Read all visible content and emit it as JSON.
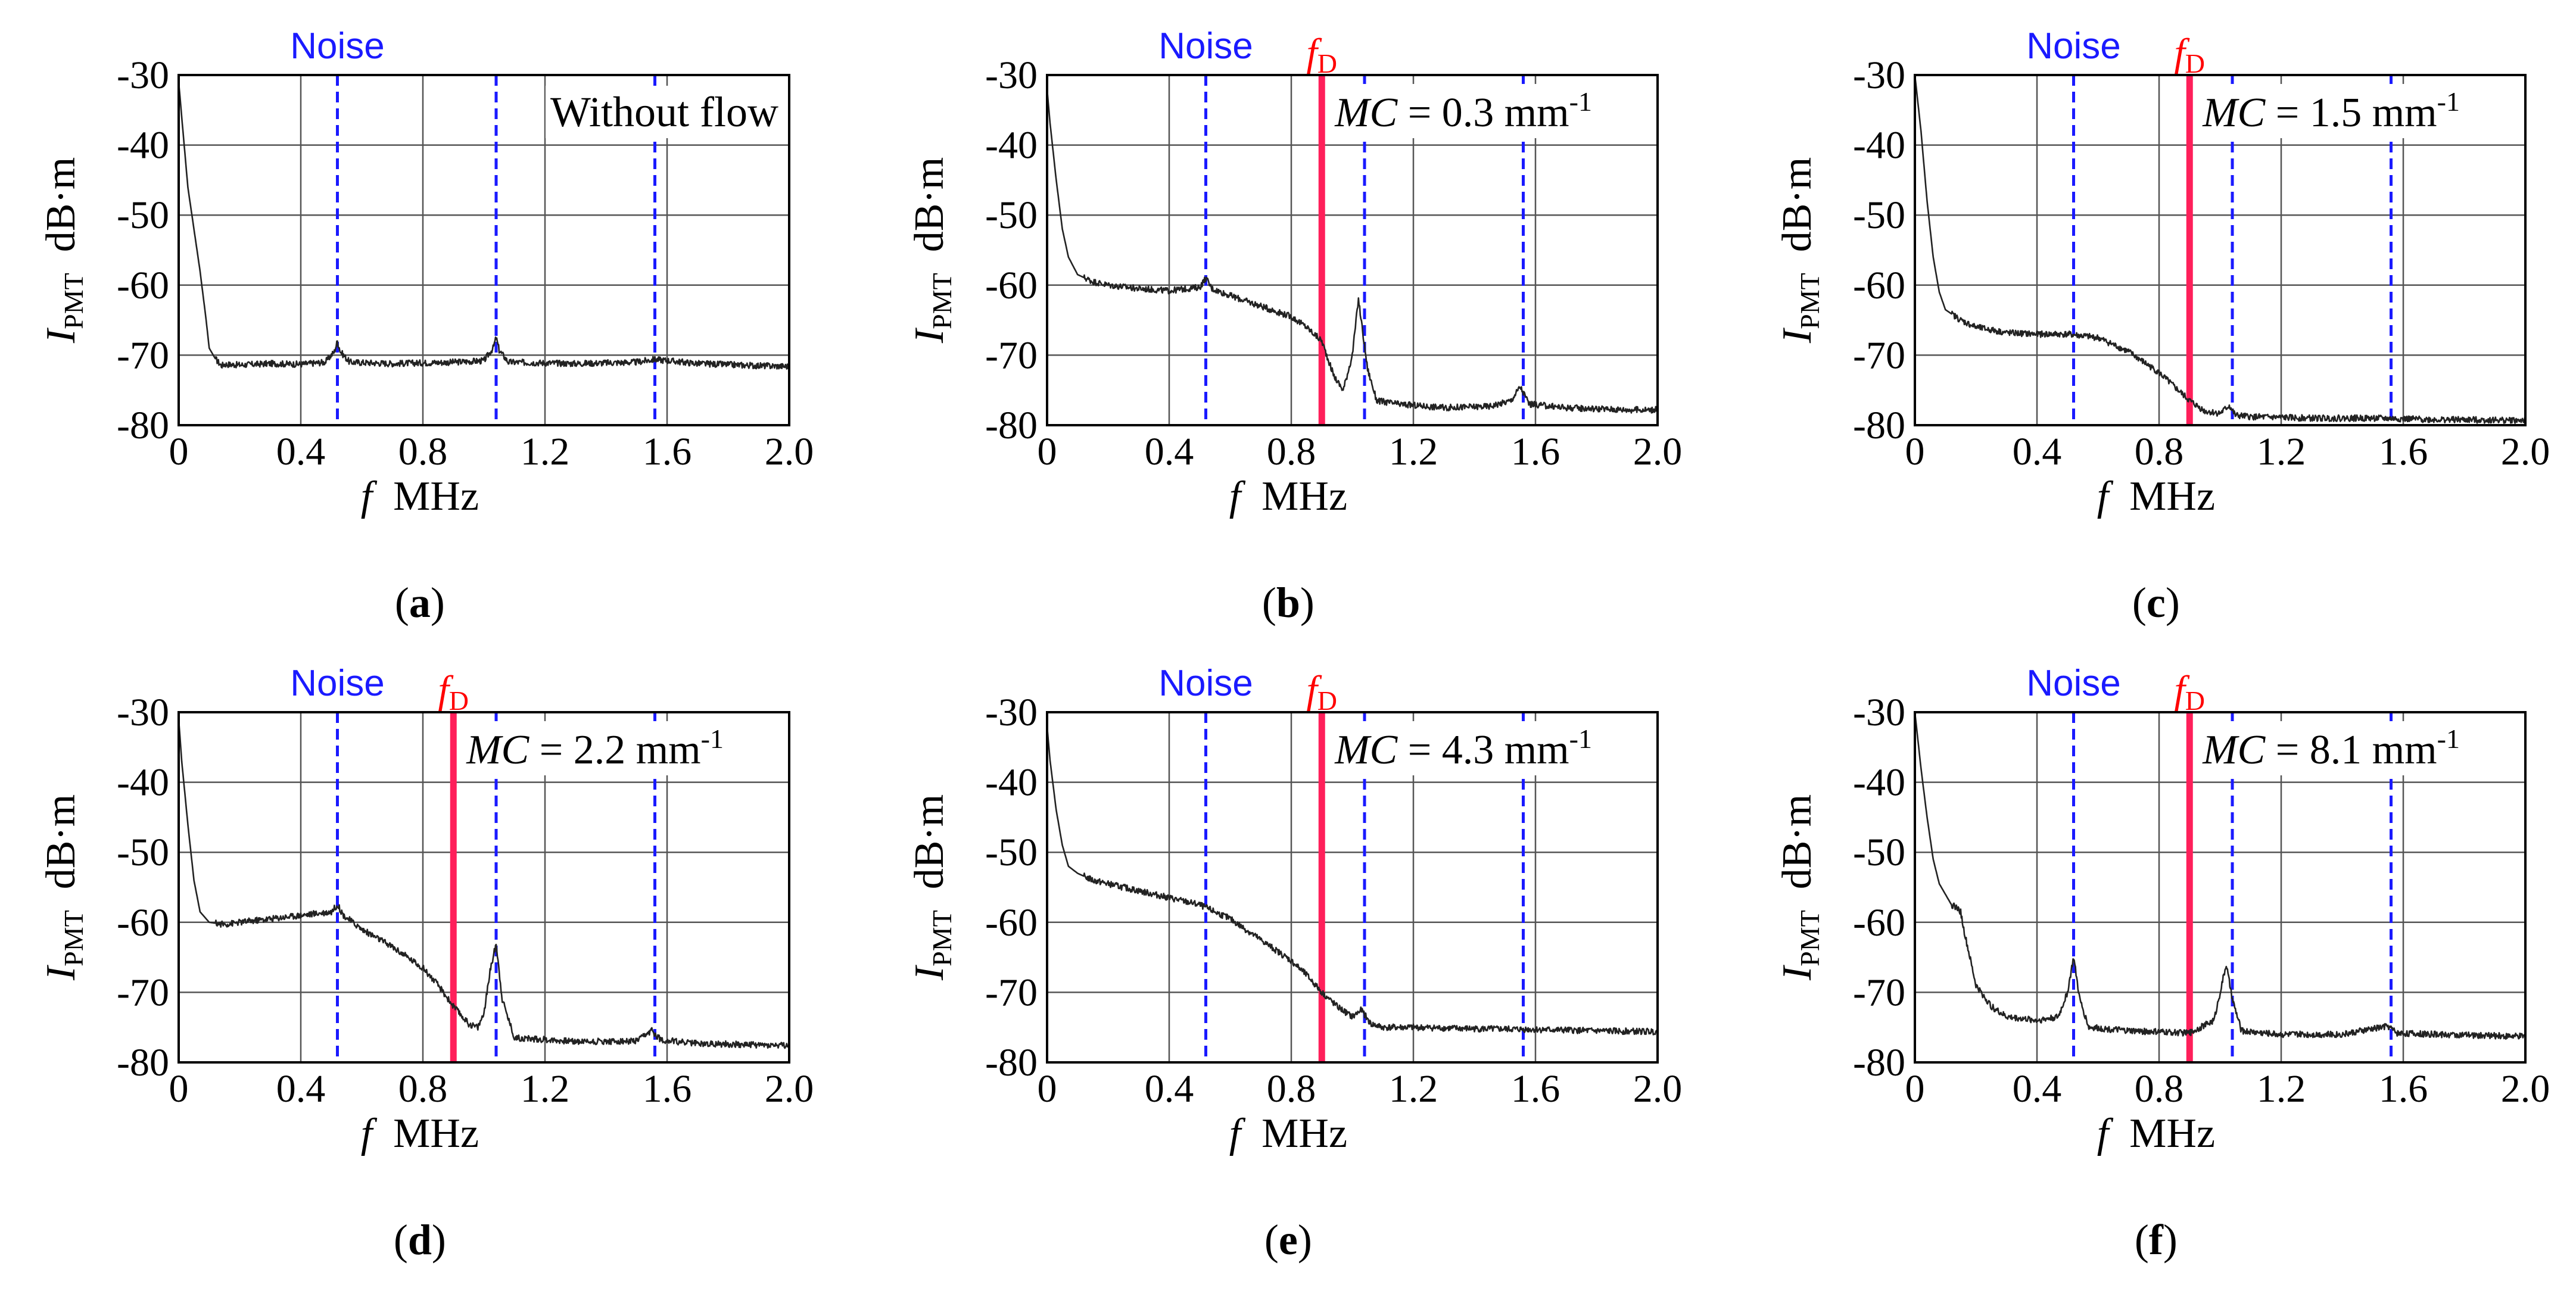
{
  "figure": {
    "colors": {
      "noise_line": "#1a1aff",
      "doppler_line": "#ff1f5a",
      "doppler_label": "#ff0000",
      "noise_label": "#1a1aff",
      "spectrum": "#222222",
      "grid": "#555555",
      "frame": "#000000"
    },
    "common": {
      "noise_label": "Noise",
      "fd_label_main": "f",
      "fd_label_sub": "D",
      "xlabel_var": "f",
      "xlabel_unit": "MHz",
      "ylabel_var": "I",
      "ylabel_sub": "PMT",
      "ylabel_unit": "dB·m",
      "mc_var": "MC",
      "mc_unit": "mm",
      "mc_exp": "-1",
      "x_ticks": [
        "0",
        "0.4",
        "0.8",
        "1.2",
        "1.6",
        "2.0"
      ],
      "y_ticks": [
        "-30",
        "-40",
        "-50",
        "-60",
        "-70",
        "-80"
      ]
    }
  },
  "chart_data": [
    {
      "type": "line",
      "panel_label": "a",
      "annotation": "Without flow",
      "mc_value": null,
      "xlim": [
        0,
        2.0
      ],
      "ylim": [
        -80,
        -30
      ],
      "x_ticks": [
        0,
        0.4,
        0.8,
        1.2,
        1.6,
        2.0
      ],
      "y_ticks": [
        -30,
        -40,
        -50,
        -60,
        -70,
        -80
      ],
      "noise_lines_mhz": [
        0.52,
        1.04,
        1.56
      ],
      "doppler_mhz": null,
      "series": [
        {
          "name": "I_PMT",
          "x": [
            0,
            0.01,
            0.03,
            0.05,
            0.07,
            0.09,
            0.1,
            0.12,
            0.14,
            0.15,
            0.2,
            0.3,
            0.4,
            0.48,
            0.51,
            0.52,
            0.53,
            0.56,
            0.7,
            0.9,
            1.0,
            1.03,
            1.04,
            1.05,
            1.08,
            1.3,
            1.5,
            1.56,
            1.7,
            1.9,
            2.0
          ],
          "y": [
            -31,
            -36,
            -46,
            -52,
            -58,
            -65,
            -69,
            -70.5,
            -71.5,
            -71.3,
            -71.4,
            -71.2,
            -71.3,
            -71,
            -69.5,
            -68,
            -69.5,
            -71,
            -71.2,
            -71,
            -70.8,
            -69,
            -67.5,
            -69.3,
            -71,
            -71.2,
            -71,
            -70.6,
            -71.2,
            -71.5,
            -71.6
          ]
        }
      ]
    },
    {
      "type": "line",
      "panel_label": "b",
      "annotation": null,
      "mc_value": "0.3",
      "xlim": [
        0,
        2.0
      ],
      "ylim": [
        -80,
        -30
      ],
      "x_ticks": [
        0,
        0.4,
        0.8,
        1.2,
        1.6,
        2.0
      ],
      "y_ticks": [
        -30,
        -40,
        -50,
        -60,
        -70,
        -80
      ],
      "noise_lines_mhz": [
        0.52,
        1.04,
        1.56
      ],
      "doppler_mhz": 0.9,
      "series": [
        {
          "name": "I_PMT",
          "x": [
            0,
            0.01,
            0.03,
            0.05,
            0.07,
            0.1,
            0.15,
            0.2,
            0.3,
            0.4,
            0.5,
            0.52,
            0.54,
            0.6,
            0.7,
            0.8,
            0.85,
            0.9,
            0.94,
            0.97,
            1.0,
            1.02,
            1.05,
            1.08,
            1.15,
            1.3,
            1.45,
            1.52,
            1.55,
            1.58,
            1.7,
            1.9,
            2.0
          ],
          "y": [
            -32,
            -37,
            -45,
            -52,
            -56,
            -58.5,
            -59.5,
            -60,
            -60.5,
            -60.8,
            -60.3,
            -59,
            -60.5,
            -61.5,
            -63,
            -64.5,
            -66,
            -68,
            -73,
            -75,
            -70,
            -62,
            -72,
            -76.5,
            -77,
            -77.5,
            -77.3,
            -76.5,
            -74.5,
            -77,
            -77.5,
            -77.8,
            -77.8
          ]
        }
      ]
    },
    {
      "type": "line",
      "panel_label": "c",
      "annotation": null,
      "mc_value": "1.5",
      "xlim": [
        0,
        2.0
      ],
      "ylim": [
        -80,
        -30
      ],
      "x_ticks": [
        0,
        0.4,
        0.8,
        1.2,
        1.6,
        2.0
      ],
      "y_ticks": [
        -30,
        -40,
        -50,
        -60,
        -70,
        -80
      ],
      "noise_lines_mhz": [
        0.52,
        1.04,
        1.56
      ],
      "doppler_mhz": 0.9,
      "series": [
        {
          "name": "I_PMT",
          "x": [
            0,
            0.02,
            0.04,
            0.06,
            0.08,
            0.1,
            0.15,
            0.2,
            0.3,
            0.4,
            0.5,
            0.6,
            0.7,
            0.8,
            0.85,
            0.9,
            0.95,
            1.0,
            1.03,
            1.05,
            1.1,
            1.3,
            1.5,
            1.7,
            2.0
          ],
          "y": [
            -30,
            -38,
            -48,
            -56,
            -61,
            -63.5,
            -65,
            -66,
            -66.8,
            -67,
            -67,
            -67.5,
            -69.5,
            -72.5,
            -74.5,
            -76.5,
            -78,
            -78.3,
            -77.2,
            -78.6,
            -78.8,
            -79,
            -79,
            -79.2,
            -79.3
          ]
        }
      ]
    },
    {
      "type": "line",
      "panel_label": "d",
      "annotation": null,
      "mc_value": "2.2",
      "xlim": [
        0,
        2.0
      ],
      "ylim": [
        -80,
        -30
      ],
      "x_ticks": [
        0,
        0.4,
        0.8,
        1.2,
        1.6,
        2.0
      ],
      "y_ticks": [
        -30,
        -40,
        -50,
        -60,
        -70,
        -80
      ],
      "noise_lines_mhz": [
        0.52,
        1.04,
        1.56
      ],
      "doppler_mhz": 0.9,
      "series": [
        {
          "name": "I_PMT",
          "x": [
            0,
            0.01,
            0.03,
            0.05,
            0.07,
            0.1,
            0.15,
            0.2,
            0.3,
            0.4,
            0.5,
            0.52,
            0.54,
            0.6,
            0.7,
            0.8,
            0.85,
            0.9,
            0.95,
            0.98,
            1.0,
            1.02,
            1.04,
            1.06,
            1.1,
            1.3,
            1.5,
            1.55,
            1.58,
            1.7,
            1.9,
            2.0
          ],
          "y": [
            -31,
            -37,
            -46,
            -54,
            -58.5,
            -60,
            -60.3,
            -60,
            -59.5,
            -59,
            -58.5,
            -57.5,
            -59,
            -61,
            -63.5,
            -66.5,
            -69,
            -72,
            -74.5,
            -75,
            -73,
            -67,
            -63,
            -71,
            -76.5,
            -77,
            -77,
            -75.5,
            -76.8,
            -77.3,
            -77.5,
            -77.6
          ]
        }
      ]
    },
    {
      "type": "line",
      "panel_label": "e",
      "annotation": null,
      "mc_value": "4.3",
      "xlim": [
        0,
        2.0
      ],
      "ylim": [
        -80,
        -30
      ],
      "x_ticks": [
        0,
        0.4,
        0.8,
        1.2,
        1.6,
        2.0
      ],
      "y_ticks": [
        -30,
        -40,
        -50,
        -60,
        -70,
        -80
      ],
      "noise_lines_mhz": [
        0.52,
        1.04,
        1.56
      ],
      "doppler_mhz": 0.9,
      "series": [
        {
          "name": "I_PMT",
          "x": [
            0,
            0.01,
            0.03,
            0.05,
            0.07,
            0.1,
            0.15,
            0.2,
            0.3,
            0.4,
            0.5,
            0.6,
            0.7,
            0.8,
            0.85,
            0.9,
            0.95,
            1.0,
            1.03,
            1.06,
            1.1,
            1.2,
            1.4,
            1.6,
            1.8,
            2.0
          ],
          "y": [
            -32,
            -37,
            -44,
            -49,
            -52,
            -53,
            -54,
            -54.5,
            -55.5,
            -56.5,
            -57.5,
            -59.5,
            -62.5,
            -65.5,
            -67.5,
            -70,
            -72,
            -73.5,
            -72.5,
            -74.5,
            -75,
            -75,
            -75.2,
            -75.3,
            -75.5,
            -75.6
          ]
        }
      ]
    },
    {
      "type": "line",
      "panel_label": "f",
      "annotation": null,
      "mc_value": "8.1",
      "xlim": [
        0,
        2.0
      ],
      "ylim": [
        -80,
        -30
      ],
      "x_ticks": [
        0,
        0.4,
        0.8,
        1.2,
        1.6,
        2.0
      ],
      "y_ticks": [
        -30,
        -40,
        -50,
        -60,
        -70,
        -80
      ],
      "noise_lines_mhz": [
        0.52,
        1.04,
        1.56
      ],
      "doppler_mhz": 0.9,
      "series": [
        {
          "name": "I_PMT",
          "x": [
            0,
            0.02,
            0.04,
            0.06,
            0.08,
            0.1,
            0.12,
            0.14,
            0.15,
            0.16,
            0.18,
            0.2,
            0.25,
            0.3,
            0.4,
            0.47,
            0.5,
            0.52,
            0.54,
            0.57,
            0.7,
            0.9,
            0.98,
            1.0,
            1.02,
            1.04,
            1.07,
            1.2,
            1.4,
            1.55,
            1.58,
            1.7,
            1.9,
            2.0
          ],
          "y": [
            -30,
            -38,
            -45,
            -51,
            -54.5,
            -56,
            -57.5,
            -58,
            -58.5,
            -61,
            -65,
            -69,
            -72,
            -73.5,
            -74,
            -73.5,
            -70,
            -65,
            -71,
            -75,
            -75.5,
            -75.8,
            -74,
            -70,
            -66,
            -71,
            -75.5,
            -76,
            -76,
            -74.8,
            -75.8,
            -76,
            -76.2,
            -76.3
          ]
        }
      ]
    }
  ]
}
